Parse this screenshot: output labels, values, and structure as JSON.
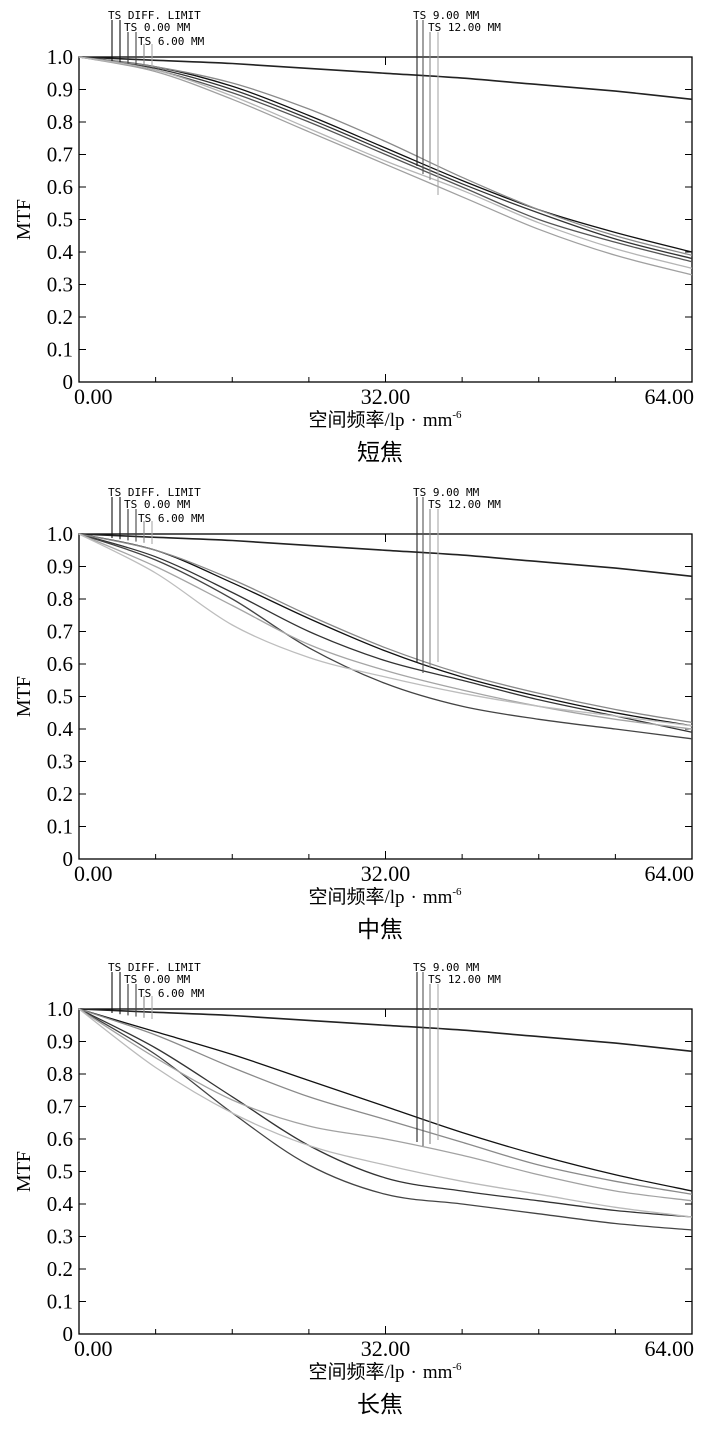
{
  "chart_data": [
    {
      "type": "line",
      "caption": "短焦",
      "xlabel_cn": "空间频率/lp",
      "xlabel_dot": "·",
      "xlabel_unit": "mm",
      "xlabel_exp": "-6",
      "ylabel": "MTF",
      "xlim": [
        0,
        64
      ],
      "ylim": [
        0,
        1
      ],
      "x_ticks": [
        "0.00",
        "32.00",
        "64.00"
      ],
      "y_ticks": [
        "0",
        "0.1",
        "0.2",
        "0.3",
        "0.4",
        "0.5",
        "0.6",
        "0.7",
        "0.8",
        "0.9",
        "1.0"
      ],
      "legend_left": [
        "TS DIFF. LIMIT",
        "TS 0.00 MM",
        "TS 6.00 MM"
      ],
      "legend_right": [
        "TS 9.00 MM",
        "TS 12.00 MM"
      ],
      "series": [
        {
          "color": "#222222",
          "x": [
            0,
            8,
            16,
            24,
            32,
            40,
            48,
            56,
            64
          ],
          "y": [
            1.0,
            0.99,
            0.98,
            0.965,
            0.95,
            0.935,
            0.915,
            0.895,
            0.87
          ]
        },
        {
          "color": "#111111",
          "x": [
            0,
            8,
            16,
            24,
            32,
            40,
            48,
            56,
            64
          ],
          "y": [
            1.0,
            0.97,
            0.91,
            0.82,
            0.72,
            0.62,
            0.53,
            0.46,
            0.4
          ]
        },
        {
          "color": "#333333",
          "x": [
            0,
            8,
            16,
            24,
            32,
            40,
            48,
            56,
            64
          ],
          "y": [
            1.0,
            0.965,
            0.9,
            0.81,
            0.71,
            0.61,
            0.52,
            0.44,
            0.38
          ]
        },
        {
          "color": "#555555",
          "x": [
            0,
            8,
            16,
            24,
            32,
            40,
            48,
            56,
            64
          ],
          "y": [
            1.0,
            0.96,
            0.89,
            0.8,
            0.7,
            0.6,
            0.5,
            0.43,
            0.37
          ]
        },
        {
          "color": "#8a8a8a",
          "x": [
            0,
            8,
            16,
            24,
            32,
            40,
            48,
            56,
            64
          ],
          "y": [
            1.0,
            0.97,
            0.92,
            0.84,
            0.74,
            0.63,
            0.53,
            0.45,
            0.39
          ]
        },
        {
          "color": "#a0a0a0",
          "x": [
            0,
            8,
            16,
            24,
            32,
            40,
            48,
            56,
            64
          ],
          "y": [
            1.0,
            0.955,
            0.87,
            0.77,
            0.67,
            0.57,
            0.47,
            0.39,
            0.33
          ]
        },
        {
          "color": "#b5b5b5",
          "x": [
            0,
            8,
            16,
            24,
            32,
            40,
            48,
            56,
            64
          ],
          "y": [
            1.0,
            0.96,
            0.88,
            0.78,
            0.68,
            0.59,
            0.49,
            0.41,
            0.35
          ]
        }
      ]
    },
    {
      "type": "line",
      "caption": "中焦",
      "xlabel_cn": "空间频率/lp",
      "xlabel_dot": "·",
      "xlabel_unit": "mm",
      "xlabel_exp": "-6",
      "ylabel": "MTF",
      "xlim": [
        0,
        64
      ],
      "ylim": [
        0,
        1
      ],
      "x_ticks": [
        "0.00",
        "32.00",
        "64.00"
      ],
      "y_ticks": [
        "0",
        "0.1",
        "0.2",
        "0.3",
        "0.4",
        "0.5",
        "0.6",
        "0.7",
        "0.8",
        "0.9",
        "1.0"
      ],
      "legend_left": [
        "TS DIFF. LIMIT",
        "TS 0.00 MM",
        "TS 6.00 MM"
      ],
      "legend_right": [
        "TS 9.00 MM",
        "TS 12.00 MM"
      ],
      "series": [
        {
          "color": "#222222",
          "x": [
            0,
            8,
            16,
            24,
            32,
            40,
            48,
            56,
            64
          ],
          "y": [
            1.0,
            0.99,
            0.98,
            0.965,
            0.95,
            0.935,
            0.915,
            0.895,
            0.87
          ]
        },
        {
          "color": "#111111",
          "x": [
            0,
            8,
            16,
            24,
            32,
            40,
            48,
            56,
            64
          ],
          "y": [
            1.0,
            0.95,
            0.85,
            0.74,
            0.64,
            0.56,
            0.5,
            0.45,
            0.41
          ]
        },
        {
          "color": "#333333",
          "x": [
            0,
            8,
            16,
            24,
            32,
            40,
            48,
            56,
            64
          ],
          "y": [
            1.0,
            0.93,
            0.82,
            0.7,
            0.61,
            0.55,
            0.49,
            0.44,
            0.39
          ]
        },
        {
          "color": "#444444",
          "x": [
            0,
            8,
            16,
            24,
            32,
            40,
            48,
            56,
            64
          ],
          "y": [
            1.0,
            0.92,
            0.8,
            0.65,
            0.54,
            0.47,
            0.43,
            0.4,
            0.37
          ]
        },
        {
          "color": "#888888",
          "x": [
            0,
            8,
            16,
            24,
            32,
            40,
            48,
            56,
            64
          ],
          "y": [
            1.0,
            0.95,
            0.86,
            0.75,
            0.65,
            0.57,
            0.51,
            0.46,
            0.42
          ]
        },
        {
          "color": "#a5a5a5",
          "x": [
            0,
            8,
            16,
            24,
            32,
            40,
            48,
            56,
            64
          ],
          "y": [
            1.0,
            0.9,
            0.78,
            0.66,
            0.58,
            0.52,
            0.47,
            0.43,
            0.4
          ]
        },
        {
          "color": "#bdbdbd",
          "x": [
            0,
            8,
            16,
            24,
            32,
            40,
            48,
            56,
            64
          ],
          "y": [
            1.0,
            0.88,
            0.72,
            0.62,
            0.56,
            0.51,
            0.47,
            0.44,
            0.41
          ]
        }
      ]
    },
    {
      "type": "line",
      "caption": "长焦",
      "xlabel_cn": "空间频率/lp",
      "xlabel_dot": "·",
      "xlabel_unit": "mm",
      "xlabel_exp": "-6",
      "ylabel": "MTF",
      "xlim": [
        0,
        64
      ],
      "ylim": [
        0,
        1
      ],
      "x_ticks": [
        "0.00",
        "32.00",
        "64.00"
      ],
      "y_ticks": [
        "0",
        "0.1",
        "0.2",
        "0.3",
        "0.4",
        "0.5",
        "0.6",
        "0.7",
        "0.8",
        "0.9",
        "1.0"
      ],
      "legend_left": [
        "TS DIFF. LIMIT",
        "TS 0.00 MM",
        "TS 6.00 MM"
      ],
      "legend_right": [
        "TS 9.00 MM",
        "TS 12.00 MM"
      ],
      "series": [
        {
          "color": "#222222",
          "x": [
            0,
            8,
            16,
            24,
            32,
            40,
            48,
            56,
            64
          ],
          "y": [
            1.0,
            0.99,
            0.98,
            0.965,
            0.95,
            0.935,
            0.915,
            0.895,
            0.87
          ]
        },
        {
          "color": "#111111",
          "x": [
            0,
            8,
            16,
            24,
            32,
            40,
            48,
            56,
            64
          ],
          "y": [
            1.0,
            0.93,
            0.86,
            0.78,
            0.7,
            0.62,
            0.55,
            0.49,
            0.44
          ]
        },
        {
          "color": "#333333",
          "x": [
            0,
            8,
            16,
            24,
            32,
            40,
            48,
            56,
            64
          ],
          "y": [
            1.0,
            0.88,
            0.73,
            0.58,
            0.48,
            0.44,
            0.41,
            0.38,
            0.36
          ]
        },
        {
          "color": "#444444",
          "x": [
            0,
            8,
            16,
            24,
            32,
            40,
            48,
            56,
            64
          ],
          "y": [
            1.0,
            0.86,
            0.68,
            0.52,
            0.43,
            0.4,
            0.37,
            0.34,
            0.32
          ]
        },
        {
          "color": "#8a8a8a",
          "x": [
            0,
            8,
            16,
            24,
            32,
            40,
            48,
            56,
            64
          ],
          "y": [
            1.0,
            0.92,
            0.82,
            0.73,
            0.66,
            0.59,
            0.52,
            0.47,
            0.43
          ]
        },
        {
          "color": "#a2a2a2",
          "x": [
            0,
            8,
            16,
            24,
            32,
            40,
            48,
            56,
            64
          ],
          "y": [
            1.0,
            0.85,
            0.72,
            0.64,
            0.6,
            0.55,
            0.49,
            0.44,
            0.41
          ]
        },
        {
          "color": "#bababa",
          "x": [
            0,
            8,
            16,
            24,
            32,
            40,
            48,
            56,
            64
          ],
          "y": [
            1.0,
            0.82,
            0.68,
            0.58,
            0.52,
            0.47,
            0.43,
            0.39,
            0.36
          ]
        }
      ]
    }
  ]
}
